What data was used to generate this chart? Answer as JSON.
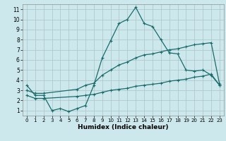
{
  "xlabel": "Humidex (Indice chaleur)",
  "bg_color": "#cce8ec",
  "grid_color": "#b0c8cc",
  "line_color": "#1a6b6b",
  "xlim": [
    -0.5,
    23.5
  ],
  "ylim": [
    0.5,
    11.5
  ],
  "xticks": [
    0,
    1,
    2,
    3,
    4,
    5,
    6,
    7,
    8,
    9,
    10,
    11,
    12,
    13,
    14,
    15,
    16,
    17,
    18,
    19,
    20,
    21,
    22,
    23
  ],
  "yticks": [
    1,
    2,
    3,
    4,
    5,
    6,
    7,
    8,
    9,
    10,
    11
  ],
  "line1_x": [
    0,
    1,
    2,
    3,
    4,
    5,
    6,
    7,
    8,
    9,
    10,
    11,
    12,
    13,
    14,
    15,
    16,
    17,
    18,
    19,
    20,
    21,
    22,
    23
  ],
  "line1_y": [
    3.5,
    2.5,
    2.5,
    1.0,
    1.2,
    0.9,
    1.2,
    1.5,
    3.5,
    6.2,
    7.9,
    9.6,
    10.0,
    11.2,
    9.6,
    9.3,
    8.0,
    6.7,
    6.6,
    5.0,
    4.9,
    5.0,
    4.5,
    3.5
  ],
  "line2_x": [
    0,
    1,
    2,
    6,
    7,
    8,
    9,
    10,
    11,
    12,
    13,
    14,
    15,
    16,
    17,
    18,
    19,
    20,
    21,
    22,
    23
  ],
  "line2_y": [
    3.0,
    2.7,
    2.7,
    3.1,
    3.5,
    3.7,
    4.5,
    5.0,
    5.5,
    5.8,
    6.2,
    6.5,
    6.6,
    6.8,
    7.0,
    7.1,
    7.3,
    7.5,
    7.6,
    7.7,
    3.6
  ],
  "line3_x": [
    0,
    1,
    2,
    6,
    7,
    8,
    9,
    10,
    11,
    12,
    13,
    14,
    15,
    16,
    17,
    18,
    19,
    20,
    21,
    22,
    23
  ],
  "line3_y": [
    2.5,
    2.2,
    2.2,
    2.4,
    2.5,
    2.6,
    2.8,
    3.0,
    3.1,
    3.2,
    3.4,
    3.5,
    3.6,
    3.7,
    3.9,
    4.0,
    4.1,
    4.3,
    4.4,
    4.6,
    3.5
  ]
}
